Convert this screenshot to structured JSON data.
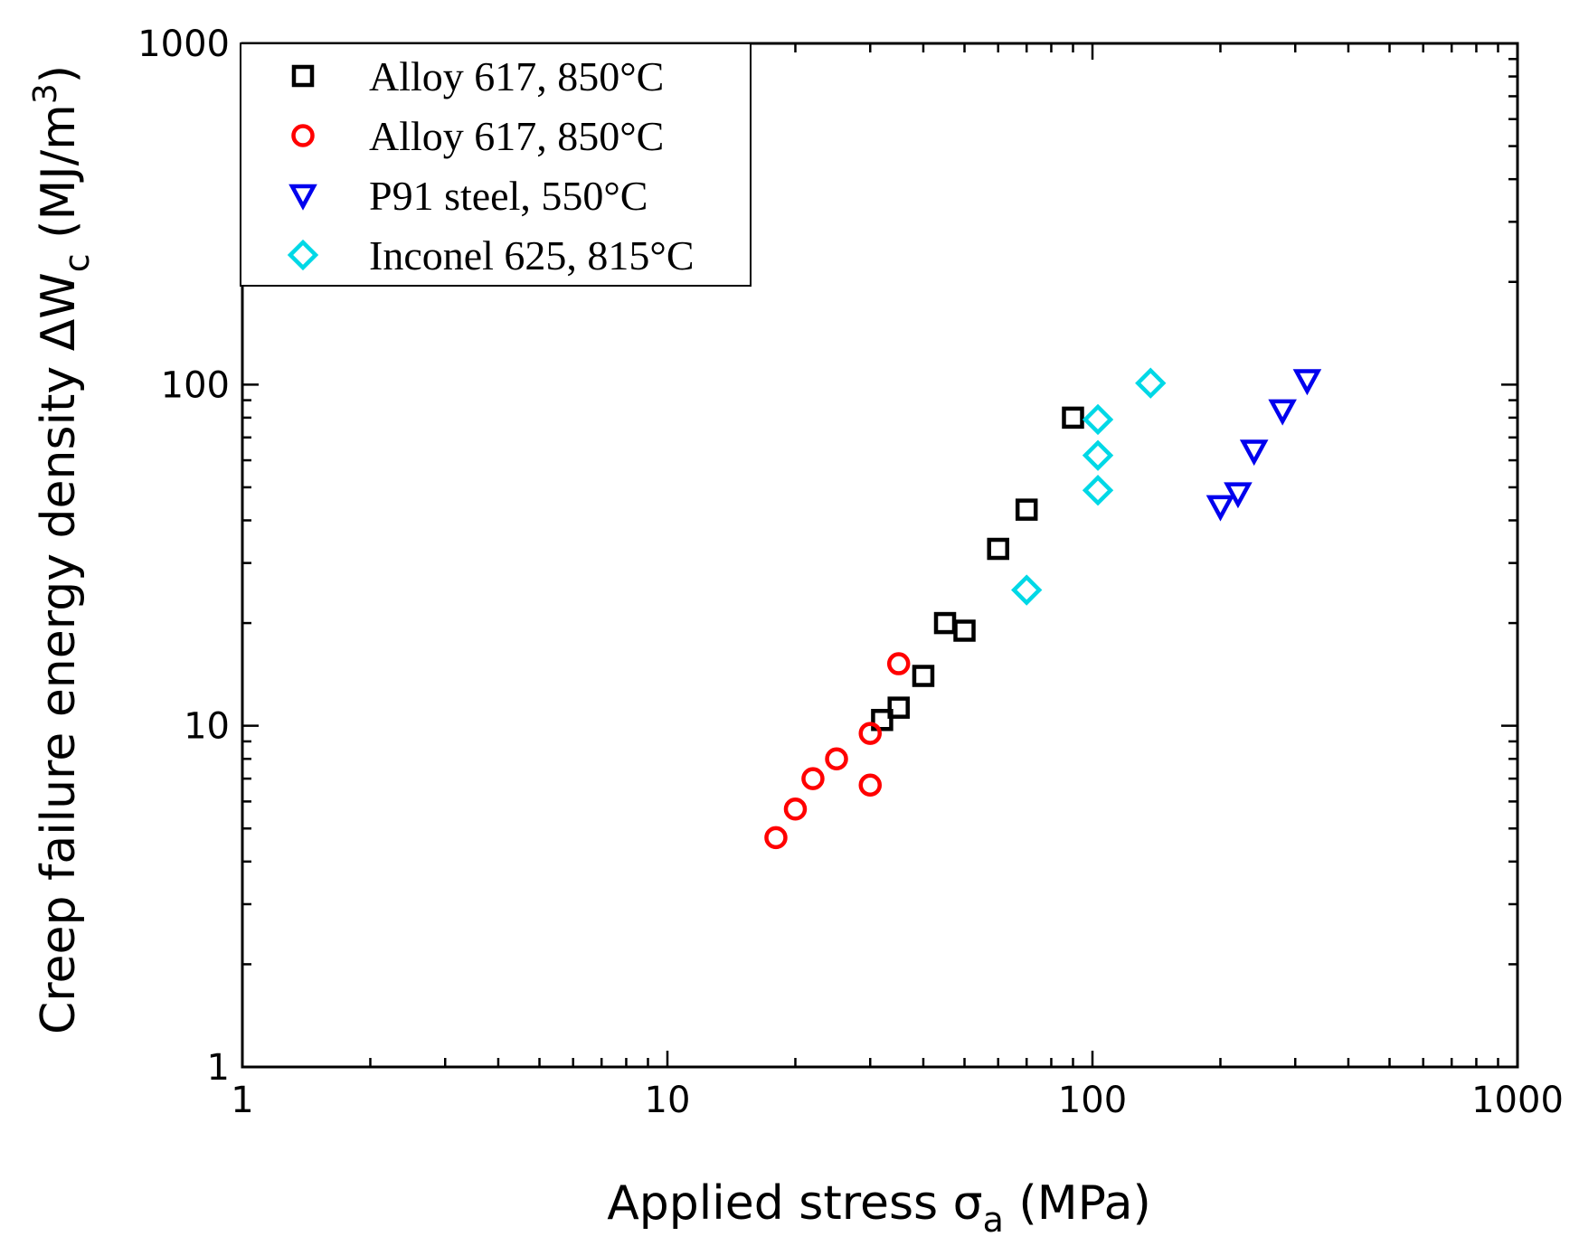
{
  "chart_data": {
    "type": "scatter",
    "title": "",
    "xlabel": "Applied stress σ",
    "xlabel_sub": "a",
    "xlabel_unit": " (MPa)",
    "ylabel": "Creep failure energy density ΔW",
    "ylabel_sub": "c",
    "ylabel_unit_pre": " (MJ/m",
    "ylabel_unit_sup": "3",
    "ylabel_unit_post": ")",
    "xscale": "log",
    "yscale": "log",
    "xlim": [
      1,
      1000
    ],
    "ylim": [
      1,
      1000
    ],
    "xticks": [
      1,
      10,
      100,
      1000
    ],
    "xtick_labels": [
      "1",
      "10",
      "100",
      "1000"
    ],
    "yticks": [
      1,
      10,
      100,
      1000
    ],
    "ytick_labels": [
      "1",
      "10",
      "100",
      "1000"
    ],
    "grid": false,
    "legend_position": "top-left",
    "series": [
      {
        "name": "Alloy 617, 850°C",
        "marker": "square",
        "color": "#000000",
        "x": [
          32,
          35,
          40,
          45,
          50,
          60,
          70,
          90
        ],
        "y": [
          10.4,
          11.3,
          14,
          20,
          19,
          33,
          43,
          80
        ]
      },
      {
        "name": "Alloy 617, 850°C",
        "marker": "circle",
        "color": "#ff0000",
        "x": [
          18,
          20,
          22,
          25,
          30,
          30,
          35
        ],
        "y": [
          4.7,
          5.7,
          7,
          8,
          9.5,
          6.7,
          15.2
        ]
      },
      {
        "name": "P91 steel, 550°C",
        "marker": "triangle-down",
        "color": "#0000ee",
        "x": [
          200,
          220,
          240,
          280,
          320
        ],
        "y": [
          44,
          48,
          64,
          84,
          103
        ]
      },
      {
        "name": "Inconel 625, 815°C",
        "marker": "diamond",
        "color": "#00d8e6",
        "x": [
          70,
          103,
          103,
          103,
          137
        ],
        "y": [
          25,
          49,
          62,
          79,
          101
        ]
      }
    ]
  }
}
